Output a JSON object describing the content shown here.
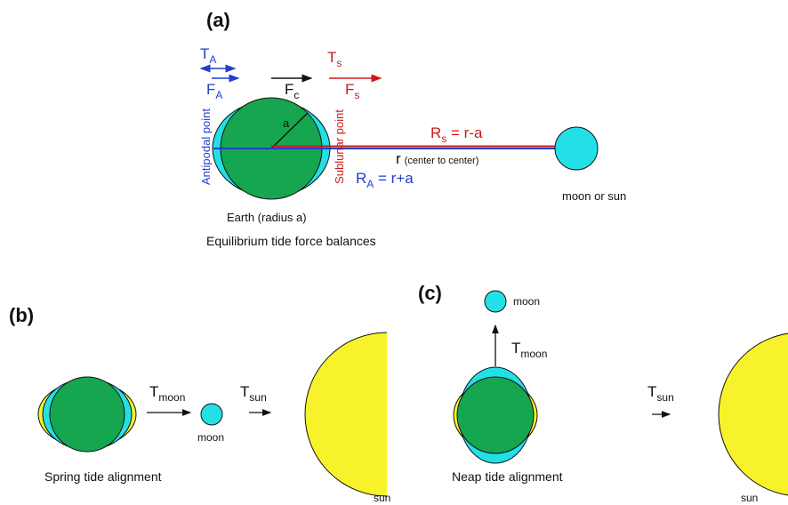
{
  "panel_a": {
    "label": "(a)",
    "ta": {
      "base": "T",
      "sub": "A"
    },
    "fa": {
      "base": "F",
      "sub": "A"
    },
    "fc": {
      "base": "F",
      "sub": "c"
    },
    "ts": {
      "base": "T",
      "sub": "s"
    },
    "fs": {
      "base": "F",
      "sub": "s"
    },
    "radius_label": "a",
    "rs": {
      "base": "R",
      "sub": "s",
      "rest": " = r-a"
    },
    "r": {
      "base": "r",
      "note": "(center to center)"
    },
    "ra": {
      "base": "R",
      "sub": "A",
      "rest": " = r+a"
    },
    "antipodal": "Antipodal point",
    "sublunar": "Sublunar point",
    "earth": "Earth (radius a)",
    "body": "moon or sun",
    "caption": "Equilibrium tide force balances"
  },
  "panel_b": {
    "label": "(b)",
    "tmoon": {
      "base": "T",
      "sub": "moon"
    },
    "tsun": {
      "base": "T",
      "sub": "sun"
    },
    "moon": "moon",
    "sun": "sun",
    "caption": "Spring tide alignment"
  },
  "panel_c": {
    "label": "(c)",
    "tmoon": {
      "base": "T",
      "sub": "moon"
    },
    "tsun": {
      "base": "T",
      "sub": "sun"
    },
    "moon": "moon",
    "sun": "sun",
    "caption": "Neap tide alignment"
  }
}
